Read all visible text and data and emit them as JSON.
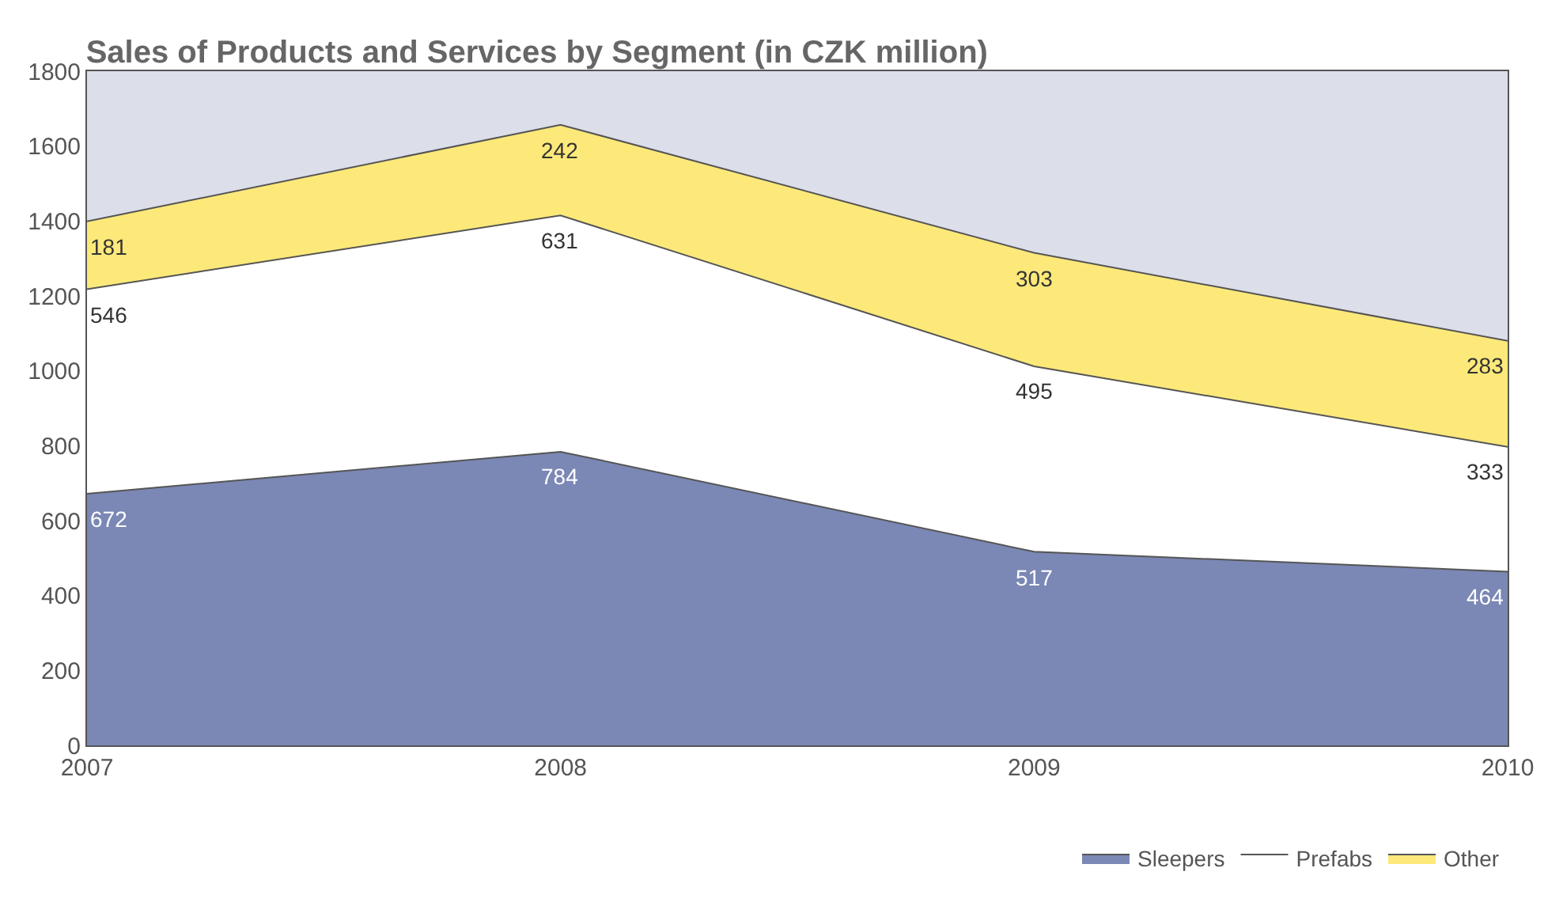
{
  "chart_data": {
    "type": "area",
    "stacked": true,
    "title": "Sales of Products and Services by Segment (in CZK million)",
    "x": [
      2007,
      2008,
      2009,
      2010
    ],
    "series": [
      {
        "name": "Sleepers",
        "color": "#7b88b5",
        "values": [
          672,
          784,
          517,
          464
        ]
      },
      {
        "name": "Prefabs",
        "color": "#ffffff",
        "values": [
          546,
          631,
          495,
          333
        ]
      },
      {
        "name": "Other",
        "color": "#fde97a",
        "values": [
          181,
          242,
          303,
          283
        ]
      }
    ],
    "xlim": [
      2007,
      2010
    ],
    "xticks": [
      2007,
      2008,
      2009,
      2010
    ],
    "ylim": [
      0,
      1800
    ],
    "yticks": [
      0,
      200,
      400,
      600,
      800,
      1000,
      1200,
      1400,
      1600,
      1800
    ],
    "data_labels": true,
    "grid": false,
    "legend": "bottom right"
  }
}
